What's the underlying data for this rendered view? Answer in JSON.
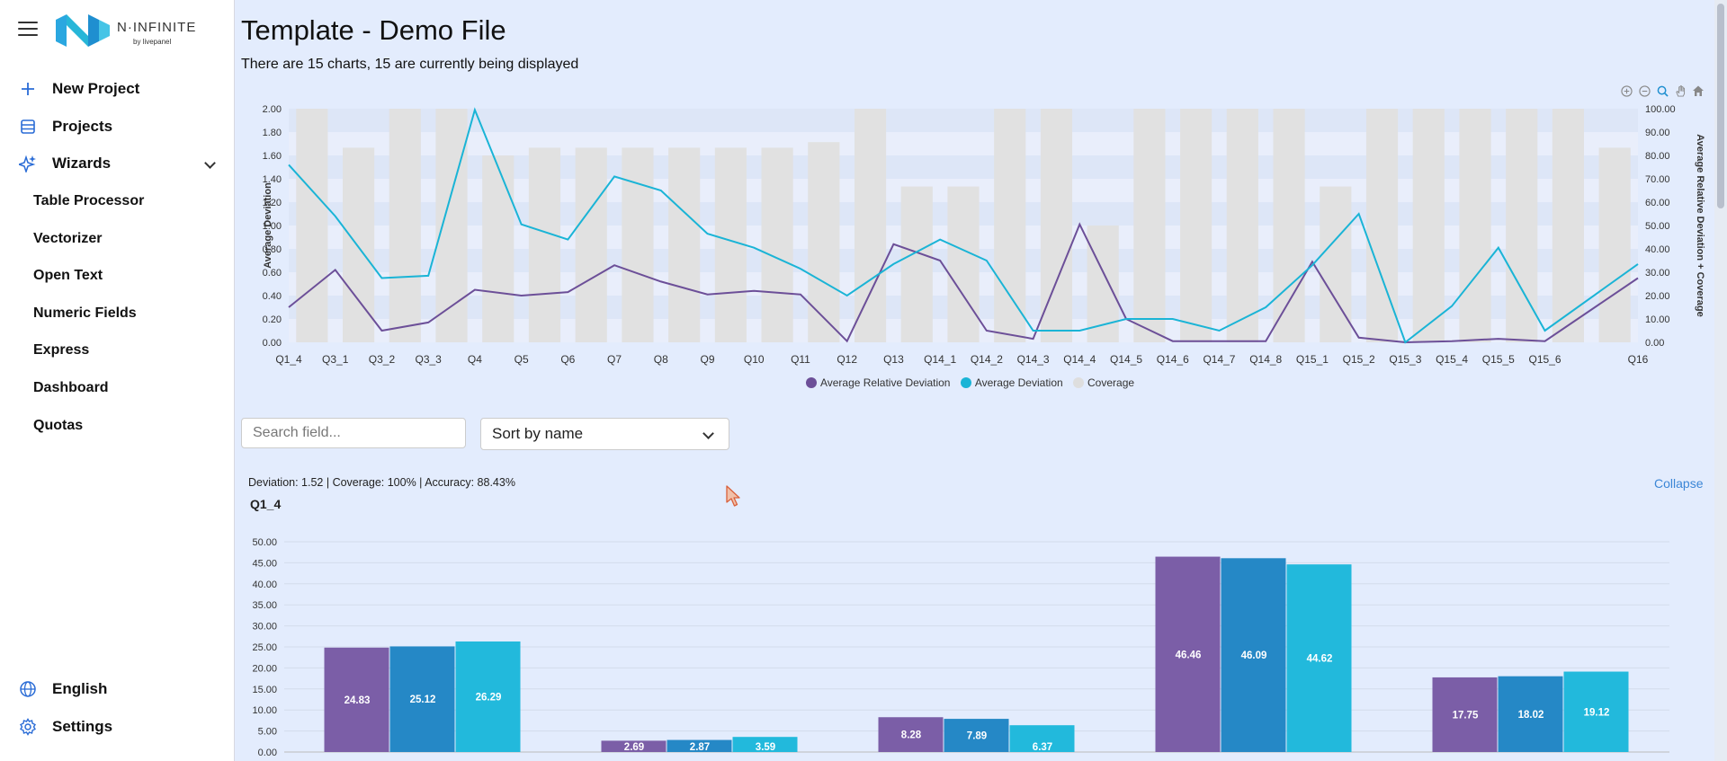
{
  "sidebar": {
    "logo_text": "N·INFINITE",
    "logo_sub": "by livepanel",
    "new_project": "New Project",
    "projects": "Projects",
    "wizards": "Wizards",
    "wizard_items": [
      "Table Processor",
      "Vectorizer",
      "Open Text",
      "Numeric Fields",
      "Express",
      "Dashboard",
      "Quotas"
    ],
    "language": "English",
    "settings": "Settings"
  },
  "page": {
    "title": "Template - Demo File",
    "subtitle": "There are 15 charts, 15 are currently being displayed"
  },
  "controls": {
    "search_placeholder": "Search field...",
    "sort_value": "Sort by name"
  },
  "detail": {
    "stats": "Deviation: 1.52 | Coverage: 100% | Accuracy: 88.43%",
    "collapse_label": "Collapse",
    "chart_name": "Q1_4"
  },
  "colors": {
    "purple": "#7b5ea7",
    "teal": "#1ab4d6",
    "blue": "#2588c6",
    "cyan": "#22b9dc",
    "coverage": "#e1e1e1",
    "accent": "#2a6cd6"
  },
  "chart_data": [
    {
      "type": "line",
      "title": "",
      "xlabel": "",
      "ylabel": "Average Deviation",
      "y2label": "Average Relative Deviation + Coverage",
      "ylim": [
        0,
        2
      ],
      "y2lim": [
        0,
        100
      ],
      "yticks": [
        "0.00",
        "0.20",
        "0.40",
        "0.60",
        "0.80",
        "1.00",
        "1.20",
        "1.40",
        "1.60",
        "1.80",
        "2.00"
      ],
      "y2ticks": [
        "0.00",
        "10.00",
        "20.00",
        "30.00",
        "40.00",
        "50.00",
        "60.00",
        "70.00",
        "80.00",
        "90.00",
        "100.00"
      ],
      "categories": [
        "Q1_4",
        "Q3_1",
        "Q3_2",
        "Q3_3",
        "Q4",
        "Q5",
        "Q6",
        "Q7",
        "Q8",
        "Q9",
        "Q10",
        "Q11",
        "Q12",
        "Q13",
        "Q14_1",
        "Q14_2",
        "Q14_3",
        "Q14_4",
        "Q14_5",
        "Q14_6",
        "Q14_7",
        "Q14_8",
        "Q15_1",
        "Q15_2",
        "Q15_3",
        "Q15_4",
        "Q15_5",
        "Q15_6",
        "Q16"
      ],
      "series": [
        {
          "name": "Average Relative Deviation",
          "axis": "right",
          "type": "line",
          "values": [
            15,
            31,
            5,
            8.5,
            22.5,
            20,
            21.5,
            33,
            26,
            20.5,
            22,
            20.5,
            0.5,
            42,
            35,
            5,
            1.5,
            50.5,
            10,
            0.5,
            0.5,
            0.5,
            34.5,
            2,
            0,
            0.5,
            1.5,
            0.5,
            27.5
          ]
        },
        {
          "name": "Average Deviation",
          "axis": "left",
          "type": "line",
          "values": [
            1.52,
            1.08,
            0.55,
            0.57,
            1.99,
            1.01,
            0.88,
            1.42,
            1.3,
            0.93,
            0.81,
            0.63,
            0.4,
            0.67,
            0.88,
            0.7,
            0.1,
            0.1,
            0.2,
            0.2,
            0.1,
            0.3,
            0.66,
            1.1,
            0,
            0.31,
            0.81,
            0.1,
            0.67
          ]
        },
        {
          "name": "Coverage",
          "axis": "right",
          "type": "bar",
          "values": [
            100,
            83.3,
            100,
            100,
            80,
            83.3,
            83.3,
            83.3,
            83.3,
            83.3,
            83.3,
            85.7,
            100,
            66.7,
            66.7,
            100,
            100,
            50,
            100,
            100,
            100,
            100,
            66.7,
            100,
            100,
            100,
            100,
            100,
            83.3
          ]
        }
      ]
    },
    {
      "type": "bar",
      "title": "Q1_4",
      "ylim": [
        0,
        50
      ],
      "yticks": [
        "0.00",
        "5.00",
        "10.00",
        "15.00",
        "20.00",
        "25.00",
        "30.00",
        "35.00",
        "40.00",
        "45.00",
        "50.00"
      ],
      "categories": [
        "",
        "",
        "",
        "",
        ""
      ],
      "series": [
        {
          "values": [
            24.83,
            2.69,
            8.28,
            46.46,
            17.75
          ],
          "labels": [
            "24.83",
            "2.69",
            "8.28",
            "46.46",
            "17.75"
          ]
        },
        {
          "values": [
            25.12,
            2.87,
            7.89,
            46.09,
            18.02
          ],
          "labels": [
            "25.12",
            "2.87",
            "7.89",
            "46.09",
            "18.02"
          ]
        },
        {
          "values": [
            26.29,
            3.59,
            6.37,
            44.62,
            19.12
          ],
          "labels": [
            "26.29",
            "3.59",
            "6.37",
            "44.62",
            "19.12"
          ]
        }
      ]
    }
  ]
}
